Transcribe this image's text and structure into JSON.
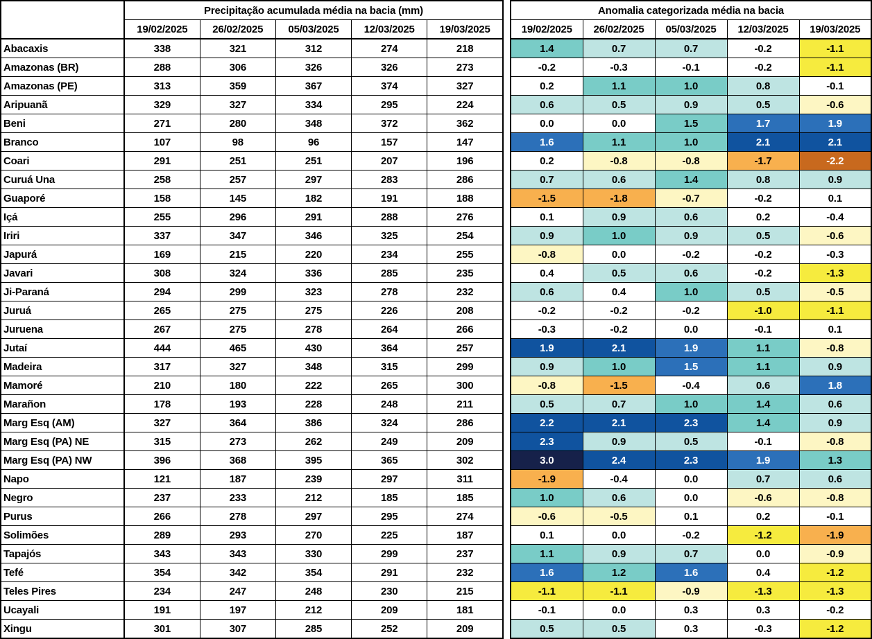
{
  "palette": {
    "w": "#FFFFFF",
    "p1": "#BEE4E2",
    "p2": "#79CCC7",
    "p3": "#2C70B9",
    "p4": "#10539F",
    "p5": "#16214A",
    "n1": "#FDF6C3",
    "n2": "#F6EB3E",
    "n3": "#F8B04E",
    "n4": "#C8691E",
    "dark_text": "#000000",
    "light_text": "#FFFFFF",
    "grid": "#000000"
  },
  "chart_data": {
    "type": "heatmap",
    "precipitation": {
      "title": "Precipitação acumulada média na bacia (mm)",
      "columns": [
        "19/02/2025",
        "26/02/2025",
        "05/03/2025",
        "12/03/2025",
        "19/03/2025"
      ]
    },
    "anomaly": {
      "title": "Anomalia categorizada média na bacia",
      "columns": [
        "19/02/2025",
        "26/02/2025",
        "05/03/2025",
        "12/03/2025",
        "19/03/2025"
      ],
      "color_scale_note": "blues = positive (wet) anomaly, yellows/oranges = negative (dry) anomaly, white = near zero"
    },
    "basins": [
      {
        "name": "Abacaxis",
        "precip": [
          338,
          321,
          312,
          274,
          218
        ],
        "anomaly": [
          "1.4",
          "0.7",
          "0.7",
          "-0.2",
          "-1.1"
        ],
        "anomaly_cat": [
          "p2",
          "p1",
          "p1",
          "w",
          "n2"
        ]
      },
      {
        "name": "Amazonas (BR)",
        "precip": [
          288,
          306,
          326,
          326,
          273
        ],
        "anomaly": [
          "-0.2",
          "-0.3",
          "-0.1",
          "-0.2",
          "-1.1"
        ],
        "anomaly_cat": [
          "w",
          "w",
          "w",
          "w",
          "n2"
        ]
      },
      {
        "name": "Amazonas (PE)",
        "precip": [
          313,
          359,
          367,
          374,
          327
        ],
        "anomaly": [
          "0.2",
          "1.1",
          "1.0",
          "0.8",
          "-0.1"
        ],
        "anomaly_cat": [
          "w",
          "p2",
          "p2",
          "p1",
          "w"
        ]
      },
      {
        "name": "Aripuanã",
        "precip": [
          329,
          327,
          334,
          295,
          224
        ],
        "anomaly": [
          "0.6",
          "0.5",
          "0.9",
          "0.5",
          "-0.6"
        ],
        "anomaly_cat": [
          "p1",
          "p1",
          "p1",
          "p1",
          "n1"
        ]
      },
      {
        "name": "Beni",
        "precip": [
          271,
          280,
          348,
          372,
          362
        ],
        "anomaly": [
          "0.0",
          "0.0",
          "1.5",
          "1.7",
          "1.9"
        ],
        "anomaly_cat": [
          "w",
          "w",
          "p2",
          "p3",
          "p3"
        ]
      },
      {
        "name": "Branco",
        "precip": [
          107,
          98,
          96,
          157,
          147
        ],
        "anomaly": [
          "1.6",
          "1.1",
          "1.0",
          "2.1",
          "2.1"
        ],
        "anomaly_cat": [
          "p3",
          "p2",
          "p2",
          "p4",
          "p4"
        ]
      },
      {
        "name": "Coari",
        "precip": [
          291,
          251,
          251,
          207,
          196
        ],
        "anomaly": [
          "0.2",
          "-0.8",
          "-0.8",
          "-1.7",
          "-2.2"
        ],
        "anomaly_cat": [
          "w",
          "n1",
          "n1",
          "n3",
          "n4"
        ]
      },
      {
        "name": "Curuá Una",
        "precip": [
          258,
          257,
          297,
          283,
          286
        ],
        "anomaly": [
          "0.7",
          "0.6",
          "1.4",
          "0.8",
          "0.9"
        ],
        "anomaly_cat": [
          "p1",
          "p1",
          "p2",
          "p1",
          "p1"
        ]
      },
      {
        "name": "Guaporé",
        "precip": [
          158,
          145,
          182,
          191,
          188
        ],
        "anomaly": [
          "-1.5",
          "-1.8",
          "-0.7",
          "-0.2",
          "0.1"
        ],
        "anomaly_cat": [
          "n3",
          "n3",
          "n1",
          "w",
          "w"
        ]
      },
      {
        "name": "Içá",
        "precip": [
          255,
          296,
          291,
          288,
          276
        ],
        "anomaly": [
          "0.1",
          "0.9",
          "0.6",
          "0.2",
          "-0.4"
        ],
        "anomaly_cat": [
          "w",
          "p1",
          "p1",
          "w",
          "w"
        ]
      },
      {
        "name": "Iriri",
        "precip": [
          337,
          347,
          346,
          325,
          254
        ],
        "anomaly": [
          "0.9",
          "1.0",
          "0.9",
          "0.5",
          "-0.6"
        ],
        "anomaly_cat": [
          "p1",
          "p2",
          "p1",
          "p1",
          "n1"
        ]
      },
      {
        "name": "Japurá",
        "precip": [
          169,
          215,
          220,
          234,
          255
        ],
        "anomaly": [
          "-0.8",
          "0.0",
          "-0.2",
          "-0.2",
          "-0.3"
        ],
        "anomaly_cat": [
          "n1",
          "w",
          "w",
          "w",
          "w"
        ]
      },
      {
        "name": "Javari",
        "precip": [
          308,
          324,
          336,
          285,
          235
        ],
        "anomaly": [
          "0.4",
          "0.5",
          "0.6",
          "-0.2",
          "-1.3"
        ],
        "anomaly_cat": [
          "w",
          "p1",
          "p1",
          "w",
          "n2"
        ]
      },
      {
        "name": "Ji-Paraná",
        "precip": [
          294,
          299,
          323,
          278,
          232
        ],
        "anomaly": [
          "0.6",
          "0.4",
          "1.0",
          "0.5",
          "-0.5"
        ],
        "anomaly_cat": [
          "p1",
          "w",
          "p2",
          "p1",
          "n1"
        ]
      },
      {
        "name": "Juruá",
        "precip": [
          265,
          275,
          275,
          226,
          208
        ],
        "anomaly": [
          "-0.2",
          "-0.2",
          "-0.2",
          "-1.0",
          "-1.1"
        ],
        "anomaly_cat": [
          "w",
          "w",
          "w",
          "n2",
          "n2"
        ]
      },
      {
        "name": "Juruena",
        "precip": [
          267,
          275,
          278,
          264,
          266
        ],
        "anomaly": [
          "-0.3",
          "-0.2",
          "0.0",
          "-0.1",
          "0.1"
        ],
        "anomaly_cat": [
          "w",
          "w",
          "w",
          "w",
          "w"
        ]
      },
      {
        "name": "Jutaí",
        "precip": [
          444,
          465,
          430,
          364,
          257
        ],
        "anomaly": [
          "1.9",
          "2.1",
          "1.9",
          "1.1",
          "-0.8"
        ],
        "anomaly_cat": [
          "p4",
          "p4",
          "p3",
          "p2",
          "n1"
        ]
      },
      {
        "name": "Madeira",
        "precip": [
          317,
          327,
          348,
          315,
          299
        ],
        "anomaly": [
          "0.9",
          "1.0",
          "1.5",
          "1.1",
          "0.9"
        ],
        "anomaly_cat": [
          "p1",
          "p2",
          "p3",
          "p2",
          "p1"
        ]
      },
      {
        "name": "Mamoré",
        "precip": [
          210,
          180,
          222,
          265,
          300
        ],
        "anomaly": [
          "-0.8",
          "-1.5",
          "-0.4",
          "0.6",
          "1.8"
        ],
        "anomaly_cat": [
          "n1",
          "n3",
          "w",
          "p1",
          "p3"
        ]
      },
      {
        "name": "Marañon",
        "precip": [
          178,
          193,
          228,
          248,
          211
        ],
        "anomaly": [
          "0.5",
          "0.7",
          "1.0",
          "1.4",
          "0.6"
        ],
        "anomaly_cat": [
          "p1",
          "p1",
          "p2",
          "p2",
          "p1"
        ]
      },
      {
        "name": "Marg Esq (AM)",
        "precip": [
          327,
          364,
          386,
          324,
          286
        ],
        "anomaly": [
          "2.2",
          "2.1",
          "2.3",
          "1.4",
          "0.9"
        ],
        "anomaly_cat": [
          "p4",
          "p4",
          "p4",
          "p2",
          "p1"
        ]
      },
      {
        "name": "Marg Esq (PA) NE",
        "precip": [
          315,
          273,
          262,
          249,
          209
        ],
        "anomaly": [
          "2.3",
          "0.9",
          "0.5",
          "-0.1",
          "-0.8"
        ],
        "anomaly_cat": [
          "p4",
          "p1",
          "p1",
          "w",
          "n1"
        ]
      },
      {
        "name": "Marg Esq (PA) NW",
        "precip": [
          396,
          368,
          395,
          365,
          302
        ],
        "anomaly": [
          "3.0",
          "2.4",
          "2.3",
          "1.9",
          "1.3"
        ],
        "anomaly_cat": [
          "p5",
          "p4",
          "p4",
          "p3",
          "p2"
        ]
      },
      {
        "name": "Napo",
        "precip": [
          121,
          187,
          239,
          297,
          311
        ],
        "anomaly": [
          "-1.9",
          "-0.4",
          "0.0",
          "0.7",
          "0.6"
        ],
        "anomaly_cat": [
          "n3",
          "w",
          "w",
          "p1",
          "p1"
        ]
      },
      {
        "name": "Negro",
        "precip": [
          237,
          233,
          212,
          185,
          185
        ],
        "anomaly": [
          "1.0",
          "0.6",
          "0.0",
          "-0.6",
          "-0.8"
        ],
        "anomaly_cat": [
          "p2",
          "p1",
          "w",
          "n1",
          "n1"
        ]
      },
      {
        "name": "Purus",
        "precip": [
          266,
          278,
          297,
          295,
          274
        ],
        "anomaly": [
          "-0.6",
          "-0.5",
          "0.1",
          "0.2",
          "-0.1"
        ],
        "anomaly_cat": [
          "n1",
          "n1",
          "w",
          "w",
          "w"
        ]
      },
      {
        "name": "Solimões",
        "precip": [
          289,
          293,
          270,
          225,
          187
        ],
        "anomaly": [
          "0.1",
          "0.0",
          "-0.2",
          "-1.2",
          "-1.9"
        ],
        "anomaly_cat": [
          "w",
          "w",
          "w",
          "n2",
          "n3"
        ]
      },
      {
        "name": "Tapajós",
        "precip": [
          343,
          343,
          330,
          299,
          237
        ],
        "anomaly": [
          "1.1",
          "0.9",
          "0.7",
          "0.0",
          "-0.9"
        ],
        "anomaly_cat": [
          "p2",
          "p1",
          "p1",
          "w",
          "n1"
        ]
      },
      {
        "name": "Tefé",
        "precip": [
          354,
          342,
          354,
          291,
          232
        ],
        "anomaly": [
          "1.6",
          "1.2",
          "1.6",
          "0.4",
          "-1.2"
        ],
        "anomaly_cat": [
          "p3",
          "p2",
          "p3",
          "w",
          "n2"
        ]
      },
      {
        "name": "Teles Pires",
        "precip": [
          234,
          247,
          248,
          230,
          215
        ],
        "anomaly": [
          "-1.1",
          "-1.1",
          "-0.9",
          "-1.3",
          "-1.3"
        ],
        "anomaly_cat": [
          "n2",
          "n2",
          "n1",
          "n2",
          "n2"
        ]
      },
      {
        "name": "Ucayali",
        "precip": [
          191,
          197,
          212,
          209,
          181
        ],
        "anomaly": [
          "-0.1",
          "0.0",
          "0.3",
          "0.3",
          "-0.2"
        ],
        "anomaly_cat": [
          "w",
          "w",
          "w",
          "w",
          "w"
        ]
      },
      {
        "name": "Xingu",
        "precip": [
          301,
          307,
          285,
          252,
          209
        ],
        "anomaly": [
          "0.5",
          "0.5",
          "0.3",
          "-0.3",
          "-1.2"
        ],
        "anomaly_cat": [
          "p1",
          "p1",
          "w",
          "w",
          "n2"
        ]
      }
    ]
  }
}
